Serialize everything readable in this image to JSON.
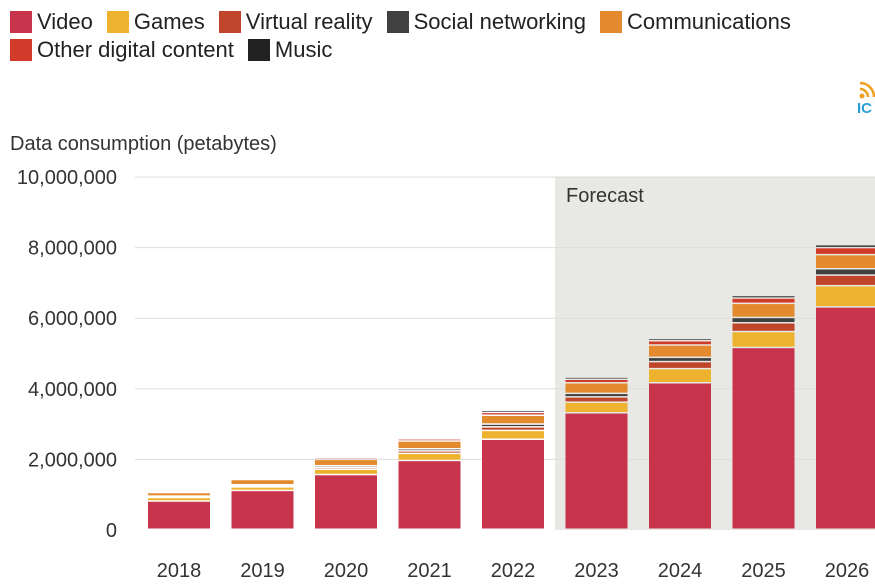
{
  "legend": {
    "items": [
      {
        "label": "Video",
        "color": "#c8344c"
      },
      {
        "label": "Games",
        "color": "#edb22e"
      },
      {
        "label": "Virtual reality",
        "color": "#c0462b"
      },
      {
        "label": "Social networking",
        "color": "#404040"
      },
      {
        "label": "Communications",
        "color": "#e3892e"
      },
      {
        "label": "Other digital content",
        "color": "#d23a2a"
      },
      {
        "label": "Music",
        "color": "#222222"
      }
    ]
  },
  "logo": {
    "icon": "rss-feed-icon",
    "text": "IC"
  },
  "chart_data": {
    "type": "bar",
    "stacked": true,
    "ylabel": "Data consumption (petabytes)",
    "ylim": [
      0,
      10000000
    ],
    "yticks": [
      0,
      2000000,
      4000000,
      6000000,
      8000000,
      10000000
    ],
    "ytick_labels": [
      "0",
      "2,000,000",
      "4,000,000",
      "6,000,000",
      "8,000,000",
      "10,000,000"
    ],
    "categories": [
      "2018",
      "2019",
      "2020",
      "2021",
      "2022",
      "2023",
      "2024",
      "2025",
      "2026"
    ],
    "forecast_label": "Forecast",
    "forecast_start": "2023",
    "series": [
      {
        "name": "Video",
        "color": "#c8344c",
        "values": [
          800000,
          1100000,
          1550000,
          1950000,
          2550000,
          3300000,
          4150000,
          5150000,
          6300000
        ]
      },
      {
        "name": "Games",
        "color": "#edb22e",
        "values": [
          100000,
          100000,
          150000,
          200000,
          250000,
          300000,
          400000,
          450000,
          600000
        ]
      },
      {
        "name": "Virtual reality",
        "color": "#c0462b",
        "values": [
          20000,
          30000,
          50000,
          70000,
          100000,
          150000,
          200000,
          250000,
          300000
        ]
      },
      {
        "name": "Social networking",
        "color": "#404040",
        "values": [
          20000,
          30000,
          50000,
          60000,
          80000,
          100000,
          120000,
          150000,
          180000
        ]
      },
      {
        "name": "Communications",
        "color": "#e3892e",
        "values": [
          100000,
          150000,
          180000,
          220000,
          250000,
          300000,
          350000,
          400000,
          400000
        ]
      },
      {
        "name": "Other digital content",
        "color": "#d23a2a",
        "values": [
          20000,
          30000,
          50000,
          60000,
          80000,
          100000,
          120000,
          150000,
          200000
        ]
      },
      {
        "name": "Music",
        "color": "#222222",
        "values": [
          20000,
          20000,
          30000,
          40000,
          60000,
          60000,
          60000,
          70000,
          80000
        ]
      }
    ]
  }
}
